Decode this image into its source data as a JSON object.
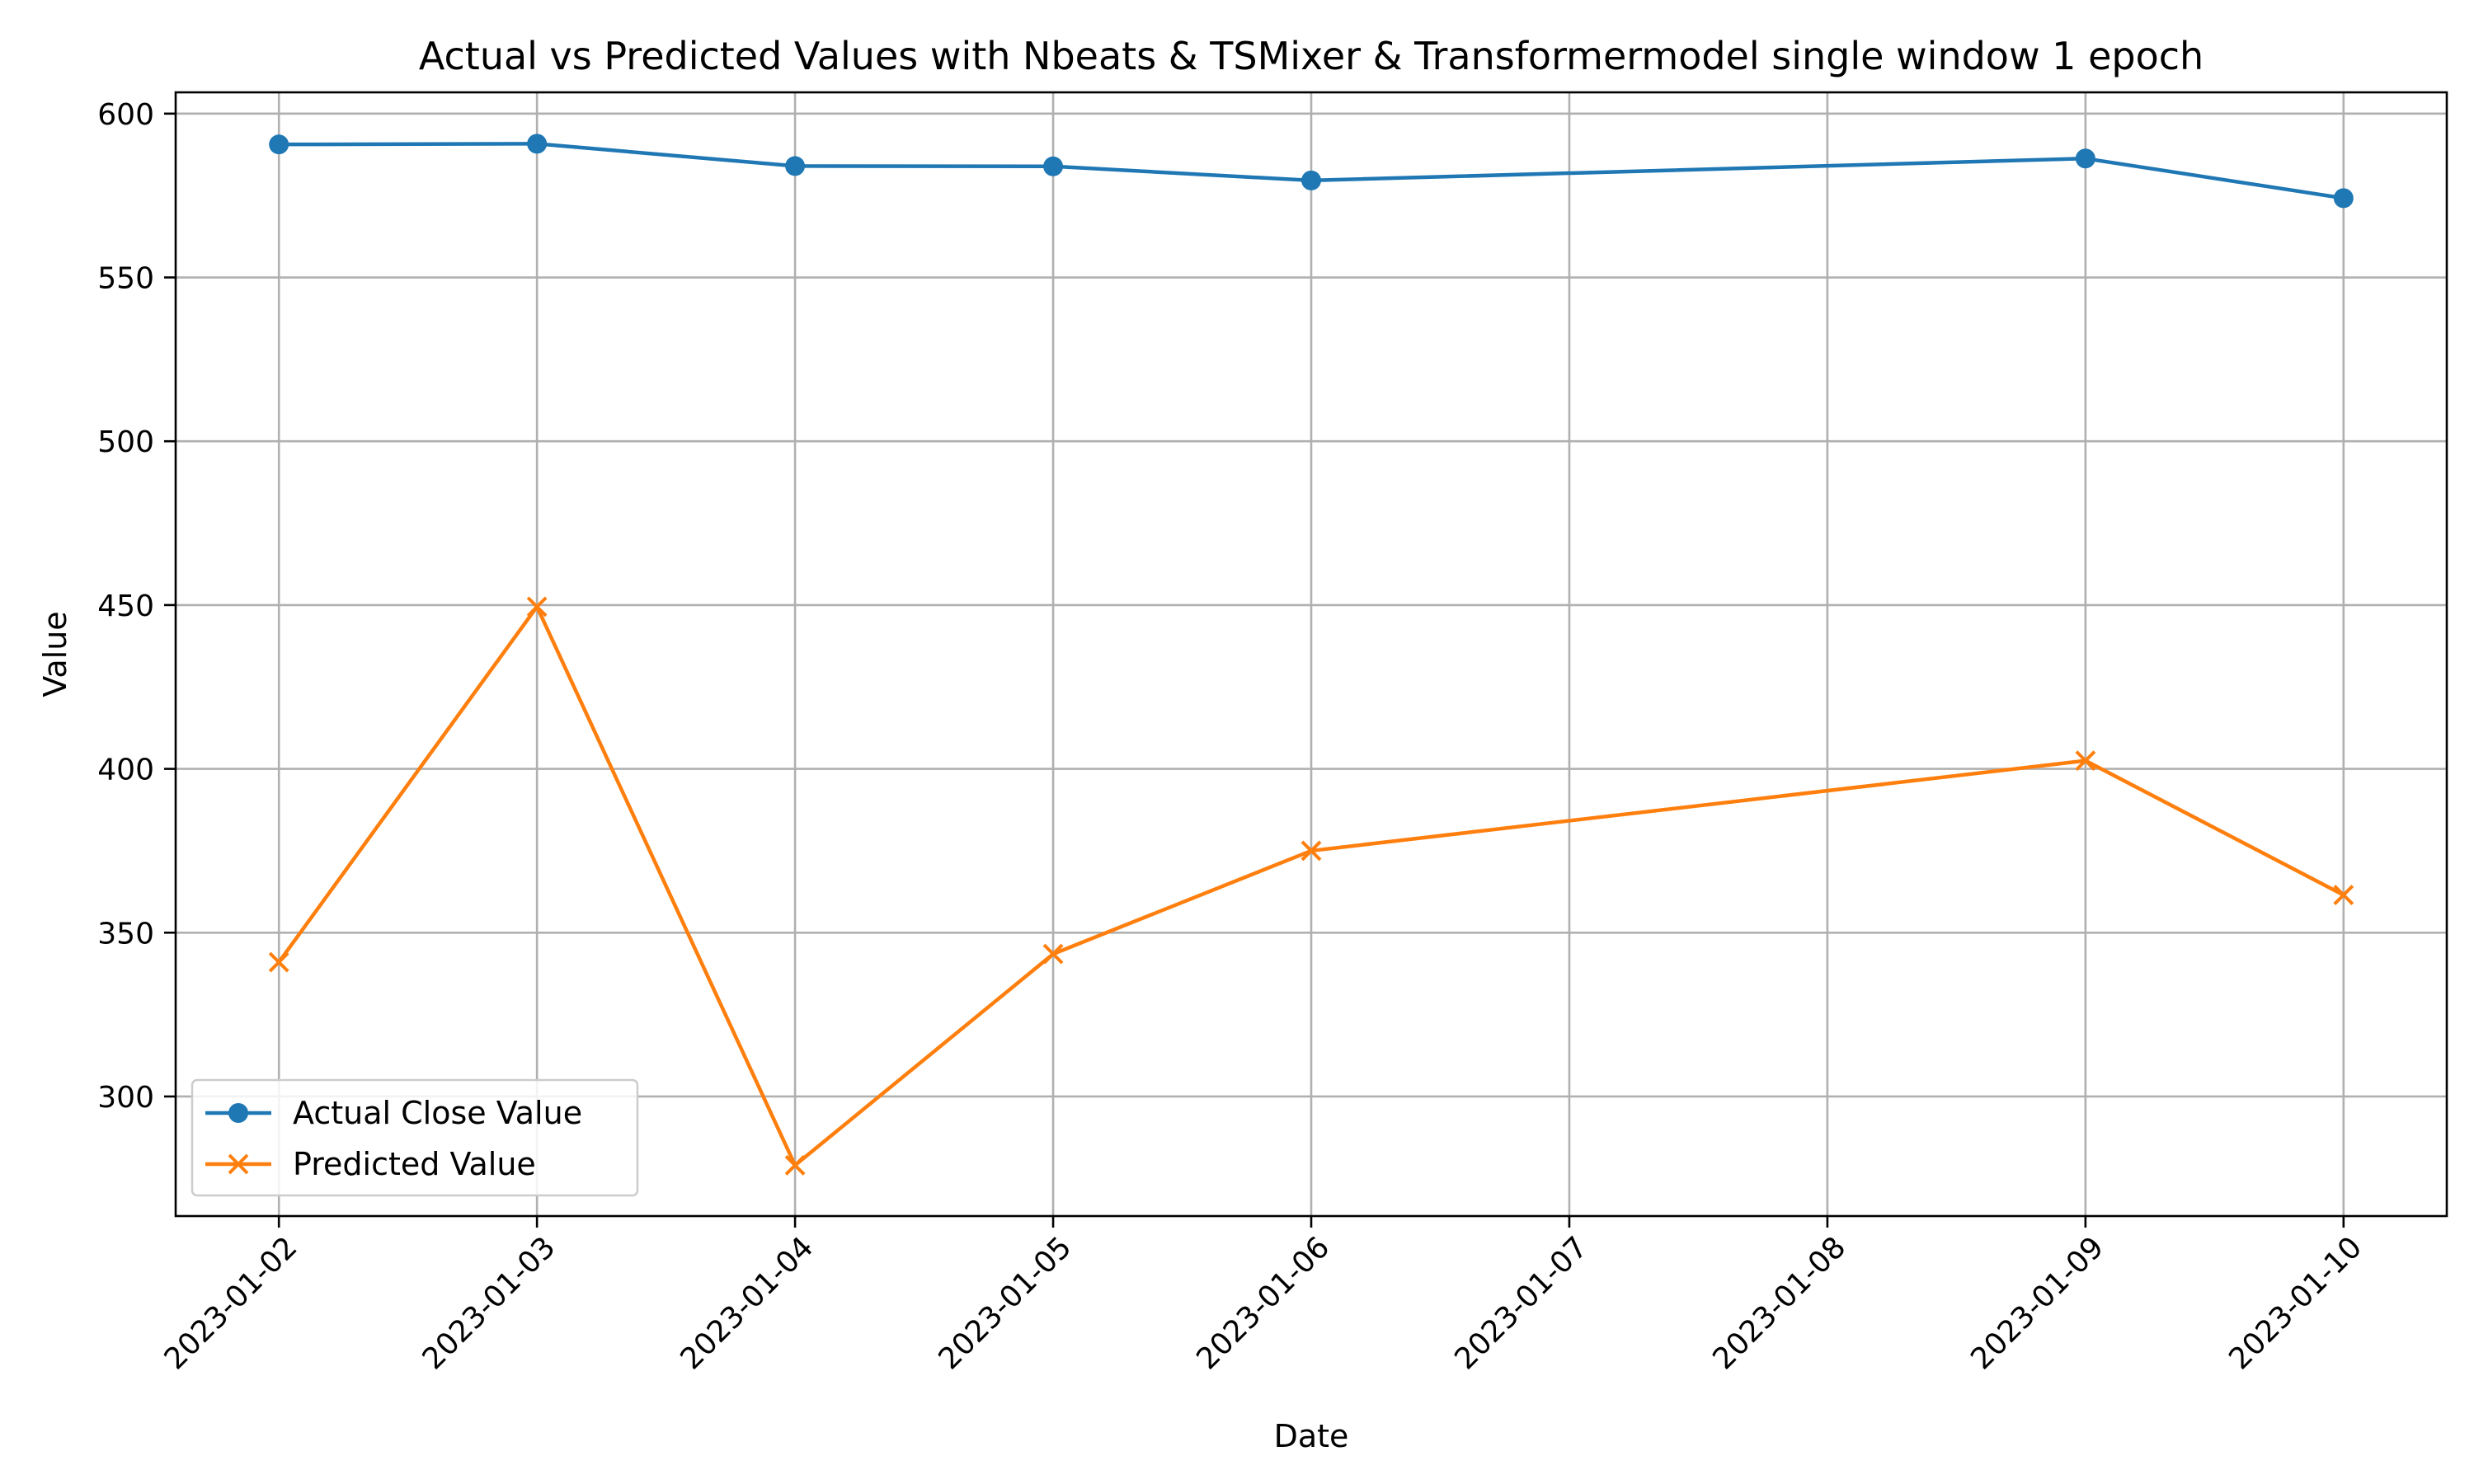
{
  "chart_data": {
    "type": "line",
    "title": "Actual vs Predicted Values with Nbeats &  TSMixer & Transformermodel single window 1 epoch",
    "xlabel": "Date",
    "ylabel": "Value",
    "x_axis_type": "date",
    "xlim": [
      "2023-01-01T14:24",
      "2023-01-10T09:36"
    ],
    "ylim": [
      263.5,
      606.5
    ],
    "xticks": [
      "2023-01-02",
      "2023-01-03",
      "2023-01-04",
      "2023-01-05",
      "2023-01-06",
      "2023-01-07",
      "2023-01-08",
      "2023-01-09",
      "2023-01-10"
    ],
    "yticks": [
      300,
      350,
      400,
      450,
      500,
      550,
      600
    ],
    "grid": true,
    "legend_position": "lower-left",
    "series": [
      {
        "name": "Actual Close Value",
        "color": "#1f77b4",
        "marker": "circle",
        "x": [
          "2023-01-02",
          "2023-01-03",
          "2023-01-04",
          "2023-01-05",
          "2023-01-06",
          "2023-01-09",
          "2023-01-10"
        ],
        "y": [
          590.6,
          590.8,
          584.0,
          583.9,
          579.6,
          586.3,
          574.2
        ]
      },
      {
        "name": "Predicted Value",
        "color": "#ff7f0e",
        "marker": "x",
        "x": [
          "2023-01-02",
          "2023-01-03",
          "2023-01-04",
          "2023-01-05",
          "2023-01-06",
          "2023-01-09",
          "2023-01-10"
        ],
        "y": [
          341.0,
          449.5,
          279.0,
          343.5,
          375.0,
          402.5,
          361.5
        ]
      }
    ]
  }
}
